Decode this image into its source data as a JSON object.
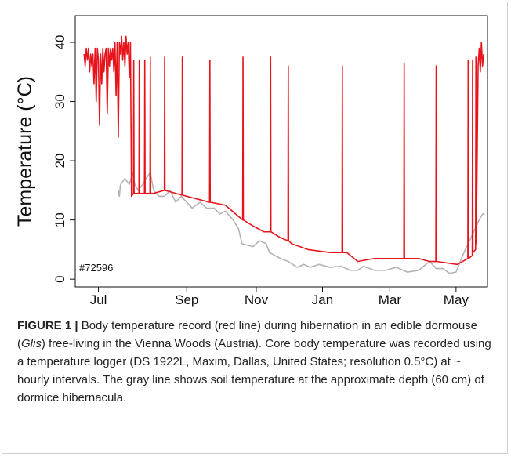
{
  "chart_data": {
    "type": "line",
    "y_label": "Temperature (°C)",
    "annotation": "#72596",
    "xlim": [
      -21,
      352.5
    ],
    "xticks": [
      {
        "value": 0,
        "label": "Jul"
      },
      {
        "value": 80,
        "label": "Sep"
      },
      {
        "value": 143,
        "label": "Nov"
      },
      {
        "value": 203,
        "label": "Jan"
      },
      {
        "value": 264,
        "label": "Mar"
      },
      {
        "value": 324,
        "label": "May"
      }
    ],
    "ylim": [
      -1.3,
      44.5
    ],
    "yticks": [
      0,
      10,
      20,
      30,
      40
    ],
    "series": [
      {
        "name": "Body temperature",
        "color": "#e8141c",
        "x": [
          -13,
          -12,
          -11,
          -10,
          -9,
          -8,
          -7,
          -6,
          -5,
          -4,
          -3,
          -2,
          -1,
          0,
          1,
          2,
          3,
          4,
          5,
          6,
          7,
          8,
          9,
          10,
          11,
          12,
          13,
          14,
          15,
          16,
          17,
          18,
          19,
          20,
          21,
          22,
          23,
          24,
          25,
          26,
          27,
          28,
          29,
          30,
          31.7,
          32,
          32.3,
          36.7,
          37,
          37.3,
          41.7,
          42,
          42.3,
          46.7,
          47,
          47.3,
          50,
          59.7,
          60,
          60.3,
          75.7,
          76,
          76.3,
          80,
          100.7,
          101,
          101.3,
          115,
          130.7,
          131,
          131.3,
          140,
          150,
          155.7,
          156,
          156.3,
          165,
          171.7,
          172,
          172.3,
          175,
          190,
          210,
          220.7,
          221,
          221.3,
          225,
          235,
          250,
          276.7,
          277,
          277.3,
          290,
          300,
          305.7,
          306,
          306.3,
          325,
          330,
          334.7,
          335,
          335.3,
          338.7,
          339,
          339.3,
          341.7,
          342,
          342.3,
          344,
          345,
          346,
          347,
          348,
          349
        ],
        "values": [
          38,
          36,
          39,
          37,
          39,
          35,
          38,
          36,
          38,
          33,
          39,
          30,
          39,
          37,
          26,
          38,
          33,
          39,
          35,
          38,
          39,
          28,
          39,
          36,
          39,
          37,
          39,
          35,
          40,
          31,
          40,
          24,
          40,
          38,
          41,
          37,
          40,
          36,
          41,
          38,
          40,
          34,
          40,
          14,
          14.5,
          37,
          14.5,
          14.5,
          37,
          14.5,
          14.5,
          37,
          14.5,
          14.5,
          37.5,
          14.5,
          14.5,
          15,
          37.5,
          15,
          14.2,
          37.5,
          14.2,
          14,
          13,
          37,
          13,
          12.5,
          10,
          37.5,
          10,
          9,
          8,
          8,
          37.5,
          8,
          7,
          6.5,
          36,
          6.5,
          6,
          5,
          4.5,
          4.5,
          36,
          4.5,
          4.5,
          3,
          3.5,
          3.5,
          36.5,
          3.5,
          3.5,
          3,
          3,
          36,
          3,
          2.5,
          3,
          3.5,
          37,
          3.5,
          4,
          37,
          4.5,
          5,
          37.5,
          6,
          36,
          39,
          35,
          40,
          36,
          38
        ]
      },
      {
        "name": "Soil temperature",
        "color": "#b3b3b3",
        "x": [
          18,
          19,
          20,
          24,
          28,
          31,
          33,
          36,
          40,
          43,
          47,
          50,
          55,
          60,
          65,
          70,
          75,
          80,
          85,
          92,
          98,
          105,
          110,
          115,
          122,
          127,
          130,
          140,
          146,
          152,
          155,
          165,
          172,
          180,
          186,
          192,
          200,
          210,
          220,
          228,
          235,
          240,
          250,
          260,
          270,
          280,
          290,
          300,
          306,
          312,
          318,
          324,
          330,
          340,
          345,
          348,
          350
        ],
        "values": [
          15,
          14,
          16,
          17,
          16,
          18,
          16,
          15,
          16,
          17,
          18,
          15,
          14,
          14,
          15,
          13,
          14,
          13,
          12,
          13,
          12,
          12,
          11,
          11.5,
          10,
          8.5,
          6,
          5.5,
          6.5,
          6,
          4.5,
          3.5,
          3,
          2,
          2.5,
          2,
          2.5,
          2,
          2.2,
          1.5,
          1.5,
          2.2,
          1.5,
          1.5,
          2,
          1.2,
          1.5,
          3,
          1.8,
          1.8,
          1,
          1.2,
          4,
          8,
          10,
          11,
          11
        ]
      }
    ]
  },
  "caption": {
    "label": "FIGURE 1 |",
    "text_start": " Body temperature record (red line) during hibernation in an edible dormouse (",
    "species": "Glis",
    "text_end": ") free-living in the Vienna Woods (Austria). Core body temperature was recorded using a temperature logger (DS 1922L, Maxim, Dallas, United States; resolution 0.5°C) at ~ hourly intervals. The gray line shows soil temperature at the approximate depth (60 cm) of dormice hibernacula."
  }
}
